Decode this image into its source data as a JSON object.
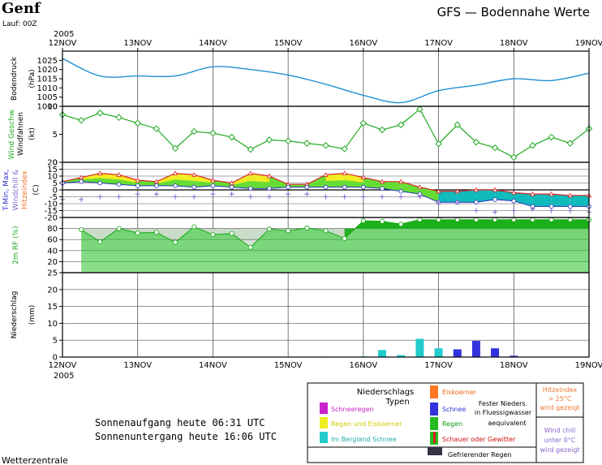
{
  "header": {
    "location": "Genf",
    "run": "Lauf: 00Z",
    "title": "GFS — Bodennahe Werte"
  },
  "axis": {
    "year_top": "2005",
    "year_bottom": "2005",
    "date_labels": [
      "12NOV",
      "13NOV",
      "14NOV",
      "15NOV",
      "16NOV",
      "17NOV",
      "18NOV",
      "19NOV"
    ]
  },
  "panel_labels": {
    "pressure": [
      "Bodendruck",
      "(hPa)"
    ],
    "wind": [
      "Wind Geschw.",
      "Windfahnen",
      "(kt)"
    ],
    "temp": [
      "T-Min, Max,",
      "Windchill &",
      "Hitzeindex",
      "(C)"
    ],
    "rh": [
      "2m RF (%)"
    ],
    "precip": [
      "Niederschlag",
      "(mm)"
    ]
  },
  "colors": {
    "pressure_line": "#1e90d2",
    "wind_line": "#22aa22",
    "temp_fill_warm": "#66dd33",
    "temp_fill_yellow": "#ffee22",
    "temp_fill_cold": "#11bbbb",
    "temp_max_line": "#dd2222",
    "windchill_marker": "#8866cc",
    "rh_fill": "#33cc33",
    "rh_fill_dark": "#11aa11",
    "precip_snow_mountain": "#22cccc",
    "precip_snow": "#3333dd"
  },
  "chart_data": [
    {
      "type": "line",
      "panel": "Bodendruck",
      "ylabel": "Bodendruck (hPa)",
      "ylim": [
        1000,
        1030
      ],
      "yticks": [
        1000,
        1005,
        1010,
        1015,
        1020,
        1025
      ],
      "x_days": [
        0,
        0.5,
        1,
        1.5,
        2,
        2.5,
        3,
        3.5,
        4,
        4.5,
        5,
        5.5,
        6,
        6.5,
        7
      ],
      "values": [
        1026,
        1016.5,
        1016.5,
        1016.5,
        1021.5,
        1020,
        1017,
        1012,
        1006,
        1002,
        1008.5,
        1011.5,
        1015,
        1014,
        1018
      ]
    },
    {
      "type": "line",
      "panel": "Wind",
      "ylabel": "Wind Geschw. Windfahnen (kt)",
      "ylim": [
        0,
        10
      ],
      "yticks": [
        0,
        5,
        10
      ],
      "x_days": [
        0,
        0.25,
        0.5,
        0.75,
        1,
        1.25,
        1.5,
        1.75,
        2,
        2.25,
        2.5,
        2.75,
        3,
        3.25,
        3.5,
        3.75,
        4,
        4.25,
        4.5,
        4.75,
        5,
        5.25,
        5.5,
        5.75,
        6,
        6.25,
        6.5,
        6.75,
        7
      ],
      "values": [
        8.5,
        7.5,
        8.8,
        8,
        7,
        6,
        2.5,
        5.5,
        5.2,
        4.5,
        2.3,
        4,
        3.8,
        3.4,
        3,
        2.4,
        7,
        5.8,
        6.7,
        9.5,
        3.3,
        6.7,
        3.6,
        2.6,
        0.9,
        3,
        4.5,
        3.4,
        6
      ]
    },
    {
      "type": "area",
      "panel": "Temperatur",
      "ylabel": "T-Min, Max, Windchill & Hitzeindex (C)",
      "ylim": [
        -20,
        20
      ],
      "yticks": [
        -20,
        -15,
        -10,
        -5,
        0,
        5,
        10,
        15,
        20
      ],
      "x_days": [
        0,
        0.25,
        0.5,
        0.75,
        1,
        1.25,
        1.5,
        1.75,
        2,
        2.25,
        2.5,
        2.75,
        3,
        3.25,
        3.5,
        3.75,
        4,
        4.25,
        4.5,
        4.75,
        5,
        5.25,
        5.5,
        5.75,
        6,
        6.25,
        6.5,
        6.75,
        7
      ],
      "tmax": [
        6,
        9,
        12,
        11,
        7,
        6,
        12,
        11,
        7,
        5,
        12,
        10,
        4,
        4,
        11,
        12,
        9,
        6,
        6,
        2,
        -1,
        -1,
        0,
        0,
        -2,
        -3,
        -3,
        -4,
        -4
      ],
      "tmin": [
        5,
        6,
        5,
        4,
        3,
        3,
        3,
        2,
        3,
        2,
        1,
        1,
        2,
        2,
        2,
        2,
        2,
        1,
        -1,
        -3,
        -9,
        -9,
        -9,
        -7,
        -8,
        -12,
        -12,
        -12,
        -12
      ],
      "windchill": [
        -7,
        -7,
        -5,
        -5,
        -3,
        -3,
        -5,
        -5,
        -3,
        -3,
        -5,
        -5,
        -3,
        -3,
        -5,
        -5,
        -5,
        -5,
        -5,
        -5,
        -9,
        -9,
        -15,
        -16,
        -15,
        -14,
        -15,
        -15,
        -16
      ]
    },
    {
      "type": "area",
      "panel": "Relative Feuchte",
      "ylabel": "2m RF (%)",
      "ylim": [
        0,
        100
      ],
      "yticks": [
        20,
        40,
        60,
        80
      ],
      "x_days": [
        0.25,
        0.5,
        0.75,
        1,
        1.25,
        1.5,
        1.75,
        2,
        2.25,
        2.5,
        2.75,
        3,
        3.25,
        3.5,
        3.75,
        4,
        4.25,
        4.5,
        4.75,
        5,
        5.25,
        5.5,
        5.75,
        6,
        6.25,
        6.5,
        6.75,
        7
      ],
      "values": [
        78,
        56,
        80,
        72,
        73,
        55,
        83,
        69,
        71,
        46,
        79,
        76,
        81,
        76,
        62,
        94,
        93,
        88,
        96,
        96,
        96,
        96,
        96,
        96,
        96,
        96,
        96,
        96
      ]
    },
    {
      "type": "bar",
      "panel": "Niederschlag",
      "ylabel": "Niederschlag (mm)",
      "ylim": [
        0,
        25
      ],
      "yticks": [
        0,
        5,
        10,
        15,
        20,
        25
      ],
      "bars": [
        {
          "x_day": 3.5,
          "value": 0.15,
          "kind": "Regen"
        },
        {
          "x_day": 4.0,
          "value": 0.2,
          "kind": "Im Bergland Schnee"
        },
        {
          "x_day": 4.25,
          "value": 2.1,
          "kind": "Im Bergland Schnee"
        },
        {
          "x_day": 4.5,
          "value": 0.6,
          "kind": "Im Bergland Schnee"
        },
        {
          "x_day": 4.75,
          "value": 5.4,
          "kind": "Im Bergland Schnee"
        },
        {
          "x_day": 5.0,
          "value": 2.6,
          "kind": "Im Bergland Schnee"
        },
        {
          "x_day": 5.25,
          "value": 2.3,
          "kind": "Schnee"
        },
        {
          "x_day": 5.5,
          "value": 4.8,
          "kind": "Schnee"
        },
        {
          "x_day": 5.75,
          "value": 2.6,
          "kind": "Schnee"
        },
        {
          "x_day": 6.0,
          "value": 0.4,
          "kind": "Schnee"
        }
      ]
    }
  ],
  "footer": {
    "sunrise": "Sonnenaufgang heute 06:31 UTC",
    "sunset": "Sonnenuntergang heute 16:06 UTC",
    "credit": "Wetterzentrale"
  },
  "legend": {
    "title1": "Niederschlags",
    "title2": "Typen",
    "schneeregen": "Schneeregen",
    "regen_eiskoerner": "Regen und Eiskoerner",
    "bergland_schnee": "Im Bergland Schnee",
    "eiskoerner": "Eiskoerner",
    "schnee": "Schnee",
    "fester_1": "Fester Nieders.",
    "fester_2": "in Fluessigwasser",
    "fester_3": "aequivalent",
    "regen": "Regen",
    "schauer": "Schauer oder Gewitter",
    "gefrierender": "Gefrierender Regen",
    "hitze_1": "Hitzeindex",
    "hitze_2": "> 25°C",
    "hitze_3": "wird gezeigt",
    "chill_1": "Wind chill",
    "chill_2": "unter 0°C",
    "chill_3": "wird gezeigt"
  }
}
